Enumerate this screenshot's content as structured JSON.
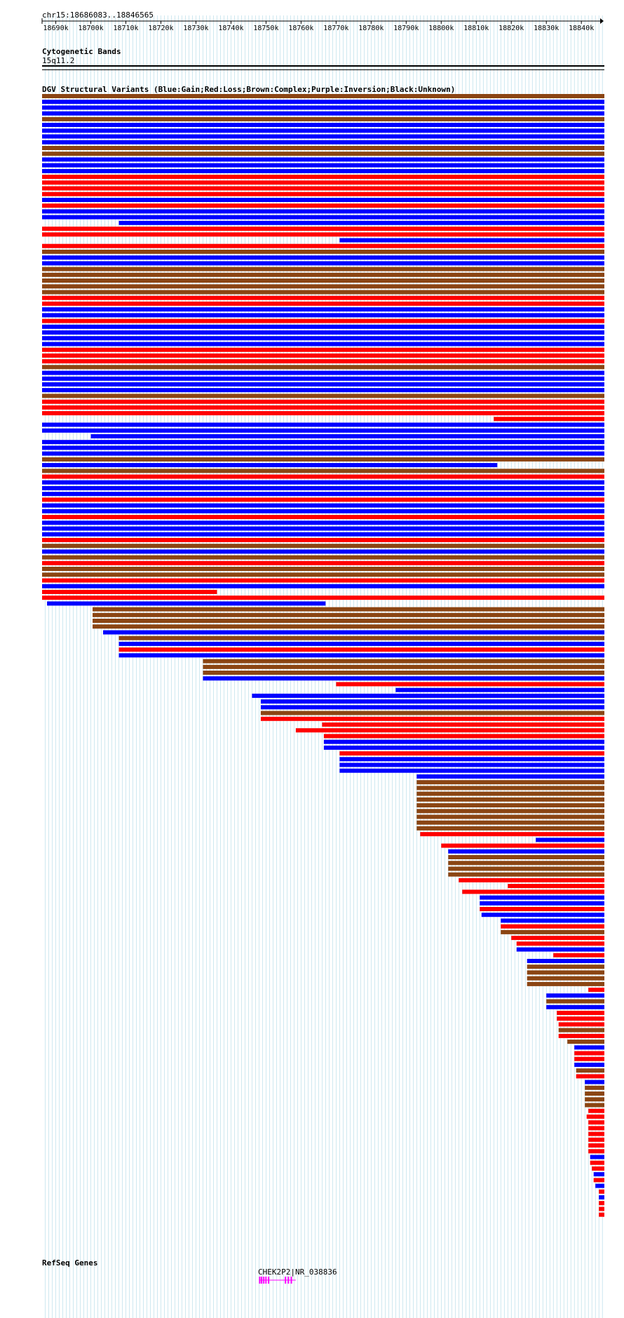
{
  "coords": "chr15:18686083..18846565",
  "tracks": {
    "cytoband_title": "Cytogenetic Bands",
    "cytoband_name": "15q11.2",
    "dgv_title": "DGV Structural Variants (Blue:Gain;Red:Loss;Brown:Complex;Purple:Inversion;Black:Unknown)",
    "refseq_title": "RefSeq Genes",
    "gene_label": "CHEK2P2|NR_038836"
  },
  "ruler": {
    "start_bp": 18686083,
    "end_bp": 18846565,
    "ticks": [
      "18690k",
      "18700k",
      "18710k",
      "18720k",
      "18730k",
      "18740k",
      "18750k",
      "18760k",
      "18770k",
      "18780k",
      "18790k",
      "18800k",
      "18810k",
      "18820k",
      "18830k",
      "18840k"
    ],
    "tick_bp": [
      18690000,
      18700000,
      18710000,
      18720000,
      18730000,
      18740000,
      18750000,
      18760000,
      18770000,
      18780000,
      18790000,
      18800000,
      18810000,
      18820000,
      18830000,
      18840000
    ]
  },
  "colors": {
    "gain": "#0000ff",
    "loss": "#ff0000",
    "complex": "#8b4513",
    "inversion": "#800080",
    "unknown": "#000000",
    "gene": "#ff00ff",
    "grid": "#add8e6"
  },
  "variants": [
    [
      "complex",
      18686083,
      18846565
    ],
    [
      "gain",
      18686083,
      18846565
    ],
    [
      "gain",
      18686083,
      18846565
    ],
    [
      "gain",
      18686083,
      18846565
    ],
    [
      "complex",
      18686083,
      18846565
    ],
    [
      "gain",
      18686083,
      18846565
    ],
    [
      "gain",
      18686083,
      18846565
    ],
    [
      "gain",
      18686083,
      18846565
    ],
    [
      "gain",
      18686083,
      18846565
    ],
    [
      "complex",
      18686083,
      18846565
    ],
    [
      "complex",
      18686083,
      18846565
    ],
    [
      "gain",
      18686083,
      18846565
    ],
    [
      "gain",
      18686083,
      18846565
    ],
    [
      "gain",
      18686083,
      18846565
    ],
    [
      "loss",
      18686083,
      18846565
    ],
    [
      "loss",
      18686083,
      18846565
    ],
    [
      "loss",
      18686083,
      18846565
    ],
    [
      "loss",
      18686083,
      18846565
    ],
    [
      "gain",
      18686083,
      18846565
    ],
    [
      "loss",
      18686083,
      18846565
    ],
    [
      "gain",
      18686083,
      18846565
    ],
    [
      "gain",
      18686083,
      18846565
    ],
    [
      "gain",
      18708000,
      18846565
    ],
    [
      "loss",
      18686083,
      18846565
    ],
    [
      "loss",
      18686083,
      18846565
    ],
    [
      "gain",
      18771000,
      18846565
    ],
    [
      "loss",
      18686083,
      18846565
    ],
    [
      "complex",
      18686083,
      18846565
    ],
    [
      "gain",
      18686083,
      18846565
    ],
    [
      "gain",
      18686083,
      18846565
    ],
    [
      "complex",
      18686083,
      18846565
    ],
    [
      "complex",
      18686083,
      18846565
    ],
    [
      "complex",
      18686083,
      18846565
    ],
    [
      "complex",
      18686083,
      18846565
    ],
    [
      "complex",
      18686083,
      18846565
    ],
    [
      "loss",
      18686083,
      18846565
    ],
    [
      "loss",
      18686083,
      18846565
    ],
    [
      "gain",
      18686083,
      18846565
    ],
    [
      "gain",
      18686083,
      18846565
    ],
    [
      "loss",
      18686083,
      18846565
    ],
    [
      "gain",
      18686083,
      18846565
    ],
    [
      "gain",
      18686083,
      18846565
    ],
    [
      "gain",
      18686083,
      18846565
    ],
    [
      "gain",
      18686083,
      18846565
    ],
    [
      "loss",
      18686083,
      18846565
    ],
    [
      "loss",
      18686083,
      18846565
    ],
    [
      "loss",
      18686083,
      18846565
    ],
    [
      "complex",
      18686083,
      18846565
    ],
    [
      "gain",
      18686083,
      18846565
    ],
    [
      "gain",
      18686083,
      18846565
    ],
    [
      "gain",
      18686083,
      18846565
    ],
    [
      "gain",
      18686083,
      18846565
    ],
    [
      "complex",
      18686083,
      18846565
    ],
    [
      "loss",
      18686083,
      18846565
    ],
    [
      "loss",
      18686083,
      18846565
    ],
    [
      "loss",
      18686083,
      18846565
    ],
    [
      "loss",
      18815000,
      18846565
    ],
    [
      "gain",
      18686083,
      18846565
    ],
    [
      "gain",
      18686083,
      18846565
    ],
    [
      "gain",
      18700000,
      18846565
    ],
    [
      "gain",
      18686083,
      18846565
    ],
    [
      "gain",
      18686083,
      18846565
    ],
    [
      "gain",
      18686083,
      18846565
    ],
    [
      "complex",
      18686083,
      18846565
    ],
    [
      "gain",
      18686083,
      18816000
    ],
    [
      "complex",
      18686083,
      18846565
    ],
    [
      "loss",
      18686083,
      18846565
    ],
    [
      "gain",
      18686083,
      18846565
    ],
    [
      "gain",
      18686083,
      18846565
    ],
    [
      "gain",
      18686083,
      18846565
    ],
    [
      "loss",
      18686083,
      18846565
    ],
    [
      "gain",
      18686083,
      18846565
    ],
    [
      "gain",
      18686083,
      18846565
    ],
    [
      "loss",
      18686083,
      18846565
    ],
    [
      "gain",
      18686083,
      18846565
    ],
    [
      "gain",
      18686083,
      18846565
    ],
    [
      "gain",
      18686083,
      18846565
    ],
    [
      "loss",
      18686083,
      18846565
    ],
    [
      "complex",
      18686083,
      18846565
    ],
    [
      "gain",
      18686083,
      18846565
    ],
    [
      "complex",
      18686083,
      18846565
    ],
    [
      "loss",
      18686083,
      18846565
    ],
    [
      "complex",
      18686083,
      18846565
    ],
    [
      "complex",
      18686083,
      18846565
    ],
    [
      "loss",
      18686083,
      18846565
    ],
    [
      "gain",
      18686083,
      18846565
    ],
    [
      "loss",
      18686083,
      18736000
    ],
    [
      "loss",
      18686083,
      18846565
    ],
    [
      "gain",
      18687500,
      18767000
    ],
    [
      "complex",
      18700500,
      18846565
    ],
    [
      "complex",
      18700500,
      18846565
    ],
    [
      "complex",
      18700500,
      18846565
    ],
    [
      "complex",
      18700500,
      18846565
    ],
    [
      "gain",
      18703500,
      18846565
    ],
    [
      "complex",
      18708000,
      18846565
    ],
    [
      "gain",
      18708000,
      18846565
    ],
    [
      "loss",
      18708000,
      18846565
    ],
    [
      "gain",
      18708000,
      18846565
    ],
    [
      "complex",
      18732000,
      18846565
    ],
    [
      "complex",
      18732000,
      18846565
    ],
    [
      "complex",
      18732000,
      18846565
    ],
    [
      "gain",
      18732000,
      18846565
    ],
    [
      "loss",
      18770000,
      18846565
    ],
    [
      "gain",
      18787000,
      18846565
    ],
    [
      "gain",
      18746000,
      18846565
    ],
    [
      "gain",
      18748500,
      18846565
    ],
    [
      "gain",
      18748500,
      18846565
    ],
    [
      "complex",
      18748500,
      18846565
    ],
    [
      "loss",
      18748500,
      18846565
    ],
    [
      "loss",
      18766000,
      18846565
    ],
    [
      "loss",
      18758500,
      18846565
    ],
    [
      "loss",
      18766500,
      18846565
    ],
    [
      "gain",
      18766500,
      18846565
    ],
    [
      "gain",
      18766500,
      18846565
    ],
    [
      "loss",
      18771000,
      18846565
    ],
    [
      "gain",
      18771000,
      18846565
    ],
    [
      "gain",
      18771000,
      18846565
    ],
    [
      "gain",
      18771000,
      18846565
    ],
    [
      "gain",
      18793000,
      18846565
    ],
    [
      "complex",
      18793000,
      18846565
    ],
    [
      "complex",
      18793000,
      18846565
    ],
    [
      "complex",
      18793000,
      18846565
    ],
    [
      "complex",
      18793000,
      18846565
    ],
    [
      "complex",
      18793000,
      18846565
    ],
    [
      "complex",
      18793000,
      18846565
    ],
    [
      "complex",
      18793000,
      18846565
    ],
    [
      "complex",
      18793000,
      18846565
    ],
    [
      "complex",
      18793000,
      18846565
    ],
    [
      "loss",
      18794000,
      18846565
    ],
    [
      "gain",
      18827000,
      18846565
    ],
    [
      "loss",
      18800000,
      18846565
    ],
    [
      "gain",
      18802000,
      18846565
    ],
    [
      "complex",
      18802000,
      18846565
    ],
    [
      "complex",
      18802000,
      18846565
    ],
    [
      "complex",
      18802000,
      18846565
    ],
    [
      "complex",
      18802000,
      18846565
    ],
    [
      "loss",
      18805000,
      18846565
    ],
    [
      "loss",
      18819000,
      18846565
    ],
    [
      "loss",
      18806000,
      18846565
    ],
    [
      "gain",
      18811000,
      18846565
    ],
    [
      "gain",
      18811000,
      18846565
    ],
    [
      "loss",
      18811000,
      18846565
    ],
    [
      "gain",
      18811500,
      18846565
    ],
    [
      "gain",
      18817000,
      18846565
    ],
    [
      "loss",
      18817000,
      18846565
    ],
    [
      "complex",
      18817000,
      18846565
    ],
    [
      "loss",
      18820000,
      18846565
    ],
    [
      "loss",
      18821500,
      18846565
    ],
    [
      "gain",
      18821500,
      18846565
    ],
    [
      "loss",
      18832000,
      18846565
    ],
    [
      "gain",
      18824500,
      18846565
    ],
    [
      "complex",
      18824500,
      18846565
    ],
    [
      "complex",
      18824500,
      18846565
    ],
    [
      "complex",
      18824500,
      18846565
    ],
    [
      "complex",
      18824500,
      18846565
    ],
    [
      "loss",
      18842000,
      18846565
    ],
    [
      "gain",
      18830000,
      18846565
    ],
    [
      "complex",
      18830000,
      18846565
    ],
    [
      "gain",
      18830000,
      18846565
    ],
    [
      "loss",
      18833000,
      18846565
    ],
    [
      "loss",
      18833000,
      18846565
    ],
    [
      "loss",
      18833500,
      18846565
    ],
    [
      "complex",
      18833500,
      18846565
    ],
    [
      "loss",
      18833500,
      18846565
    ],
    [
      "complex",
      18836000,
      18846565
    ],
    [
      "gain",
      18838000,
      18846565
    ],
    [
      "loss",
      18838000,
      18846565
    ],
    [
      "loss",
      18838000,
      18846565
    ],
    [
      "gain",
      18838000,
      18846565
    ],
    [
      "complex",
      18838500,
      18846565
    ],
    [
      "loss",
      18838500,
      18846565
    ],
    [
      "gain",
      18841000,
      18846565
    ],
    [
      "complex",
      18841000,
      18846565
    ],
    [
      "complex",
      18841000,
      18846565
    ],
    [
      "complex",
      18841000,
      18846565
    ],
    [
      "complex",
      18841000,
      18846565
    ],
    [
      "loss",
      18842000,
      18846565
    ],
    [
      "loss",
      18841500,
      18846565
    ],
    [
      "loss",
      18842000,
      18846565
    ],
    [
      "loss",
      18842000,
      18846565
    ],
    [
      "loss",
      18842000,
      18846565
    ],
    [
      "loss",
      18842000,
      18846565
    ],
    [
      "loss",
      18842000,
      18846565
    ],
    [
      "loss",
      18842000,
      18846565
    ],
    [
      "gain",
      18842500,
      18846565
    ],
    [
      "loss",
      18842500,
      18846565
    ],
    [
      "loss",
      18843000,
      18846565
    ],
    [
      "gain",
      18843500,
      18846565
    ],
    [
      "loss",
      18843500,
      18846565
    ],
    [
      "gain",
      18844000,
      18846565
    ],
    [
      "loss",
      18845000,
      18846565
    ],
    [
      "gain",
      18845000,
      18846565
    ],
    [
      "loss",
      18845000,
      18846565
    ],
    [
      "loss",
      18845000,
      18846565
    ],
    [
      "loss",
      18845000,
      18846565
    ]
  ],
  "gene": {
    "start_bp": 18748000,
    "end_bp": 18758500
  }
}
